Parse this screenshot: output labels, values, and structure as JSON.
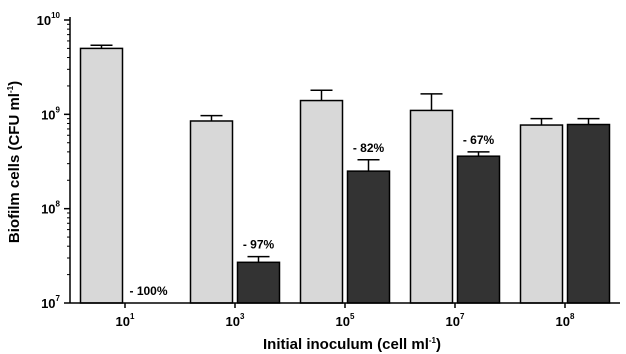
{
  "chart_data": {
    "type": "bar",
    "xlabel": "Initial inoculum (cell ml",
    "xlabel_sup": "-1",
    "xlabel_end": ")",
    "ylabel": "Biofilm cells (CFU ml",
    "ylabel_sup": "-1",
    "ylabel_end": ")",
    "y_scale": "log",
    "ylim": [
      10000000,
      10000000000
    ],
    "y_ticks": [
      {
        "value": 10000000,
        "base": "10",
        "exp": "7"
      },
      {
        "value": 100000000,
        "base": "10",
        "exp": "8"
      },
      {
        "value": 1000000000,
        "base": "10",
        "exp": "9"
      },
      {
        "value": 10000000000,
        "base": "10",
        "exp": "10"
      }
    ],
    "categories": [
      {
        "base": "10",
        "exp": "1"
      },
      {
        "base": "10",
        "exp": "3"
      },
      {
        "base": "10",
        "exp": "5"
      },
      {
        "base": "10",
        "exp": "7"
      },
      {
        "base": "10",
        "exp": "8"
      }
    ],
    "series": [
      {
        "color": "#d8d8d8",
        "values": [
          5000000000,
          850000000,
          1400000000,
          1100000000,
          770000000
        ],
        "errors_upper": [
          5400000000,
          970000000,
          1800000000,
          1650000000,
          900000000
        ]
      },
      {
        "color": "#333333",
        "values": [
          null,
          27000000,
          250000000,
          360000000,
          780000000
        ],
        "errors_upper": [
          null,
          31000000,
          330000000,
          400000000,
          900000000
        ]
      }
    ],
    "annotations": [
      "- 100%",
      "- 97%",
      "- 82%",
      "- 67%",
      ""
    ]
  }
}
